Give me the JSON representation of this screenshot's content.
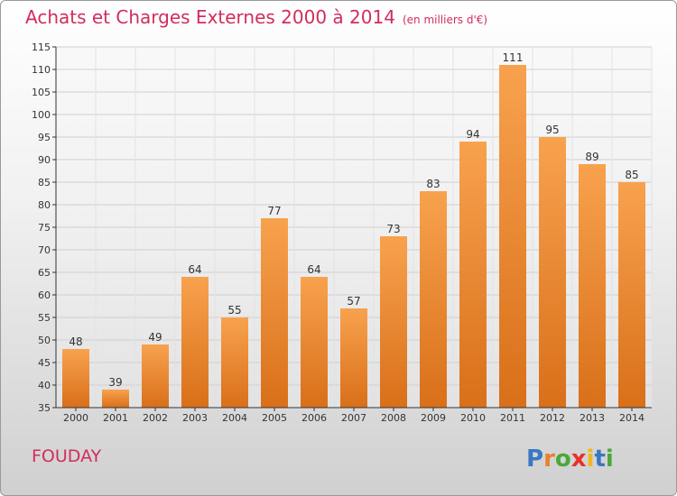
{
  "header": {
    "title": "Achats et Charges Externes 2000 à 2014",
    "subtitle": "(en milliers d'€)"
  },
  "commune": "FOUDAY",
  "brand": {
    "name": "Proxiti",
    "letter_colors": [
      "#3a78c3",
      "#e8812c",
      "#4aa83a",
      "#e8312c",
      "#f0b81e",
      "#3a78c3",
      "#4aa83a"
    ]
  },
  "colors": {
    "title": "#d22d5c",
    "bar_light": "#f8a24e",
    "bar_dark": "#d96f19",
    "grid": "#cfcfcf",
    "axis": "#333333"
  },
  "chart_data": {
    "type": "bar",
    "categories": [
      "2000",
      "2001",
      "2002",
      "2003",
      "2004",
      "2005",
      "2006",
      "2007",
      "2008",
      "2009",
      "2010",
      "2011",
      "2012",
      "2013",
      "2014"
    ],
    "values": [
      48,
      39,
      49,
      64,
      55,
      77,
      64,
      57,
      73,
      83,
      94,
      111,
      95,
      89,
      85
    ],
    "ylim": [
      35,
      115
    ],
    "yticks": [
      35,
      40,
      45,
      50,
      55,
      60,
      65,
      70,
      75,
      80,
      85,
      90,
      95,
      100,
      105,
      110,
      115
    ],
    "grid": true,
    "xlabel": "",
    "ylabel": ""
  }
}
